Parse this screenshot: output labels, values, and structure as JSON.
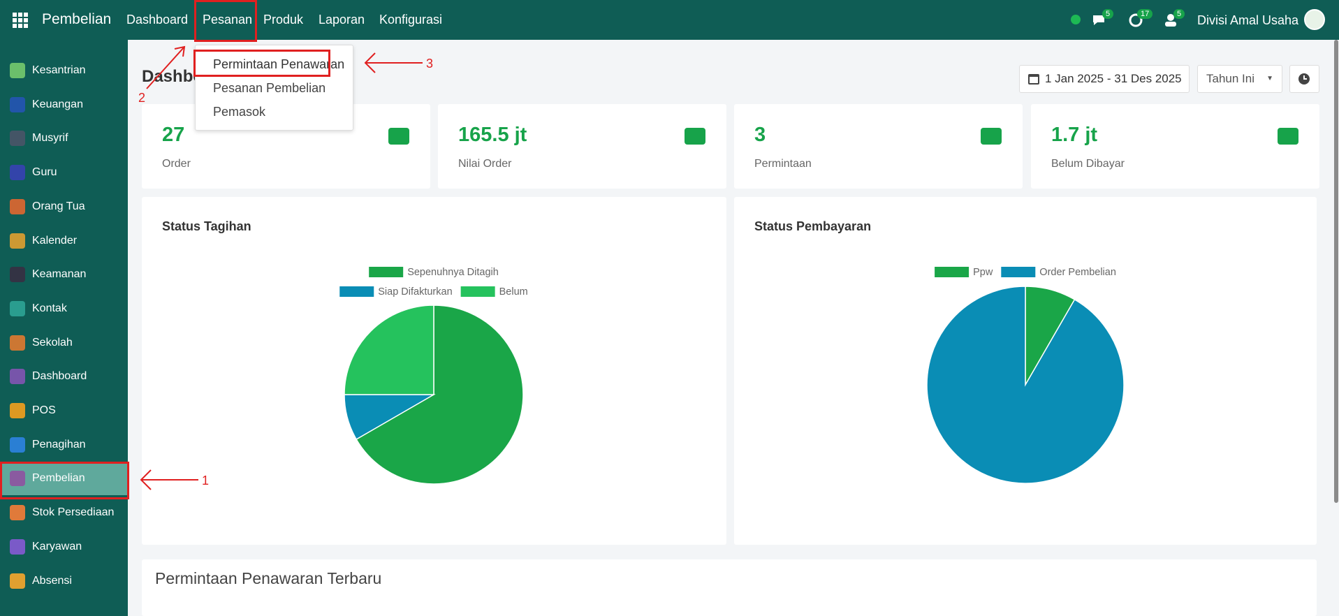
{
  "topbar": {
    "app": "Pembelian",
    "menu": [
      "Dashboard",
      "Pesanan",
      "Produk",
      "Laporan",
      "Konfigurasi"
    ],
    "badges": [
      "5",
      "17",
      "5"
    ],
    "company": "Divisi Amal Usaha"
  },
  "dropdown": [
    "Permintaan Penawaran",
    "Pesanan Pembelian",
    "Pemasok"
  ],
  "sidebar": [
    "Kesantrian",
    "Keuangan",
    "Musyrif",
    "Guru",
    "Orang Tua",
    "Kalender",
    "Keamanan",
    "Kontak",
    "Sekolah",
    "Dashboard",
    "POS",
    "Penagihan",
    "Pembelian",
    "Stok Persediaan",
    "Karyawan",
    "Absensi"
  ],
  "annotations": [
    "1",
    "2",
    "3"
  ],
  "page": {
    "title": "Dashboard",
    "date_range": "1 Jan 2025 - 31 Des 2025",
    "period": "Tahun Ini"
  },
  "kpis": [
    {
      "value": "27",
      "label": "Order"
    },
    {
      "value": "165.5 jt",
      "label": "Nilai Order"
    },
    {
      "value": "3",
      "label": "Permintaan"
    },
    {
      "value": "1.7 jt",
      "label": "Belum Dibayar"
    }
  ],
  "chart_data": [
    {
      "type": "pie",
      "title": "Status Tagihan",
      "categories": [
        "Sepenuhnya Ditagih",
        "Siap Difakturkan",
        "Belum"
      ],
      "values": [
        8,
        1,
        3
      ],
      "colors": [
        "#1aa648",
        "#0a8db5",
        "#25c25d"
      ]
    },
    {
      "type": "pie",
      "title": "Status Pembayaran",
      "categories": [
        "Ppw",
        "Order Pembelian"
      ],
      "values": [
        1,
        11
      ],
      "colors": [
        "#1aa648",
        "#0a8db5"
      ]
    }
  ],
  "recent": {
    "title": "Permintaan Penawaran Terbaru"
  }
}
